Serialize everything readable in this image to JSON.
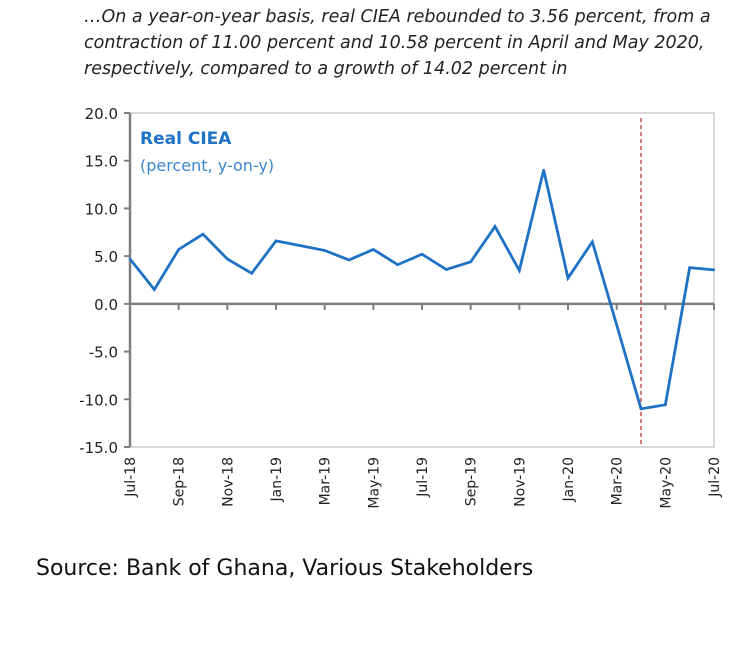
{
  "caption": "…On a year-on-year basis, real CIEA rebounded to 3.56 percent, from a contraction of 11.00 percent and 10.58 percent in April and May 2020, respectively, compared to a growth of 14.02 percent in",
  "source": "Source: Bank of Ghana, Various Stakeholders",
  "chart_data": {
    "type": "line",
    "title": "Real CIEA",
    "subtitle": "(percent, y-on-y)",
    "x": [
      "Jul-18",
      "Aug-18",
      "Sep-18",
      "Oct-18",
      "Nov-18",
      "Dec-18",
      "Jan-19",
      "Feb-19",
      "Mar-19",
      "Apr-19",
      "May-19",
      "Jun-19",
      "Jul-19",
      "Aug-19",
      "Sep-19",
      "Oct-19",
      "Nov-19",
      "Dec-19",
      "Jan-20",
      "Feb-20",
      "Mar-20",
      "Apr-20",
      "May-20",
      "Jun-20",
      "Jul-20"
    ],
    "values": [
      4.7,
      1.5,
      5.7,
      7.3,
      4.7,
      3.2,
      6.6,
      6.1,
      5.6,
      4.6,
      5.7,
      4.1,
      5.2,
      3.6,
      4.4,
      8.1,
      3.5,
      14.02,
      2.7,
      6.5,
      -2.2,
      -11.0,
      -10.58,
      3.8,
      3.56
    ],
    "x_tick_labels": [
      "Jul-18",
      "Sep-18",
      "Nov-18",
      "Jan-19",
      "Mar-19",
      "May-19",
      "Jul-19",
      "Sep-19",
      "Nov-19",
      "Jan-20",
      "Mar-20",
      "May-20",
      "Jul-20"
    ],
    "y_tick_labels": [
      "20.0",
      "15.0",
      "10.0",
      "5.0",
      "0.0",
      "-5.0",
      "-10.0",
      "-15.0"
    ],
    "ylim": [
      -15,
      20
    ],
    "reference_line_x": "Apr-20",
    "grid": false,
    "colors": {
      "line": "#1f72c4",
      "title": "#1f72c4",
      "reference": "#c0504d",
      "axis": "#7f7f7f"
    }
  }
}
